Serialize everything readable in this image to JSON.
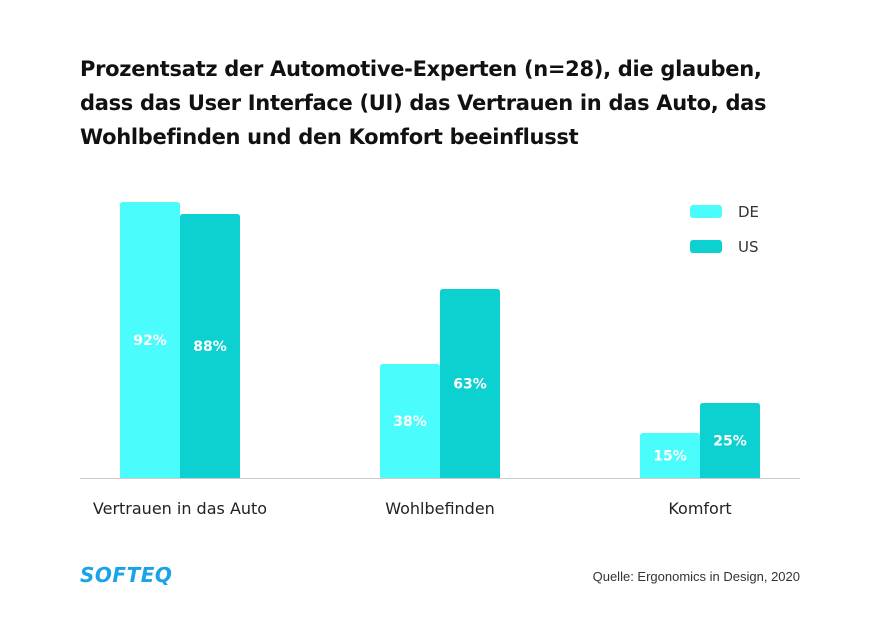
{
  "chart_data": {
    "type": "bar",
    "title": "Prozentsatz der Automotive-Experten (n=28), die glauben, dass das User Interface (UI) das Vertrauen in das Auto, das Wohlbefinden und den Komfort beeinflusst",
    "categories": [
      "Vertrauen in das Auto",
      "Wohlbefinden",
      "Komfort"
    ],
    "series": [
      {
        "name": "DE",
        "values": [
          92,
          38,
          15
        ],
        "color": "#4afcfc"
      },
      {
        "name": "US",
        "values": [
          88,
          63,
          25
        ],
        "color": "#0dd0d0"
      }
    ],
    "value_suffix": "%",
    "ylim": [
      0,
      100
    ],
    "grid": false,
    "legend": "top-right"
  },
  "footer": {
    "logo": "SOFTEQ",
    "source": "Quelle: Ergonomics in Design, 2020"
  },
  "colors": {
    "logo": "#1aa3e8",
    "text": "#111111",
    "axis": "#cccccc"
  }
}
